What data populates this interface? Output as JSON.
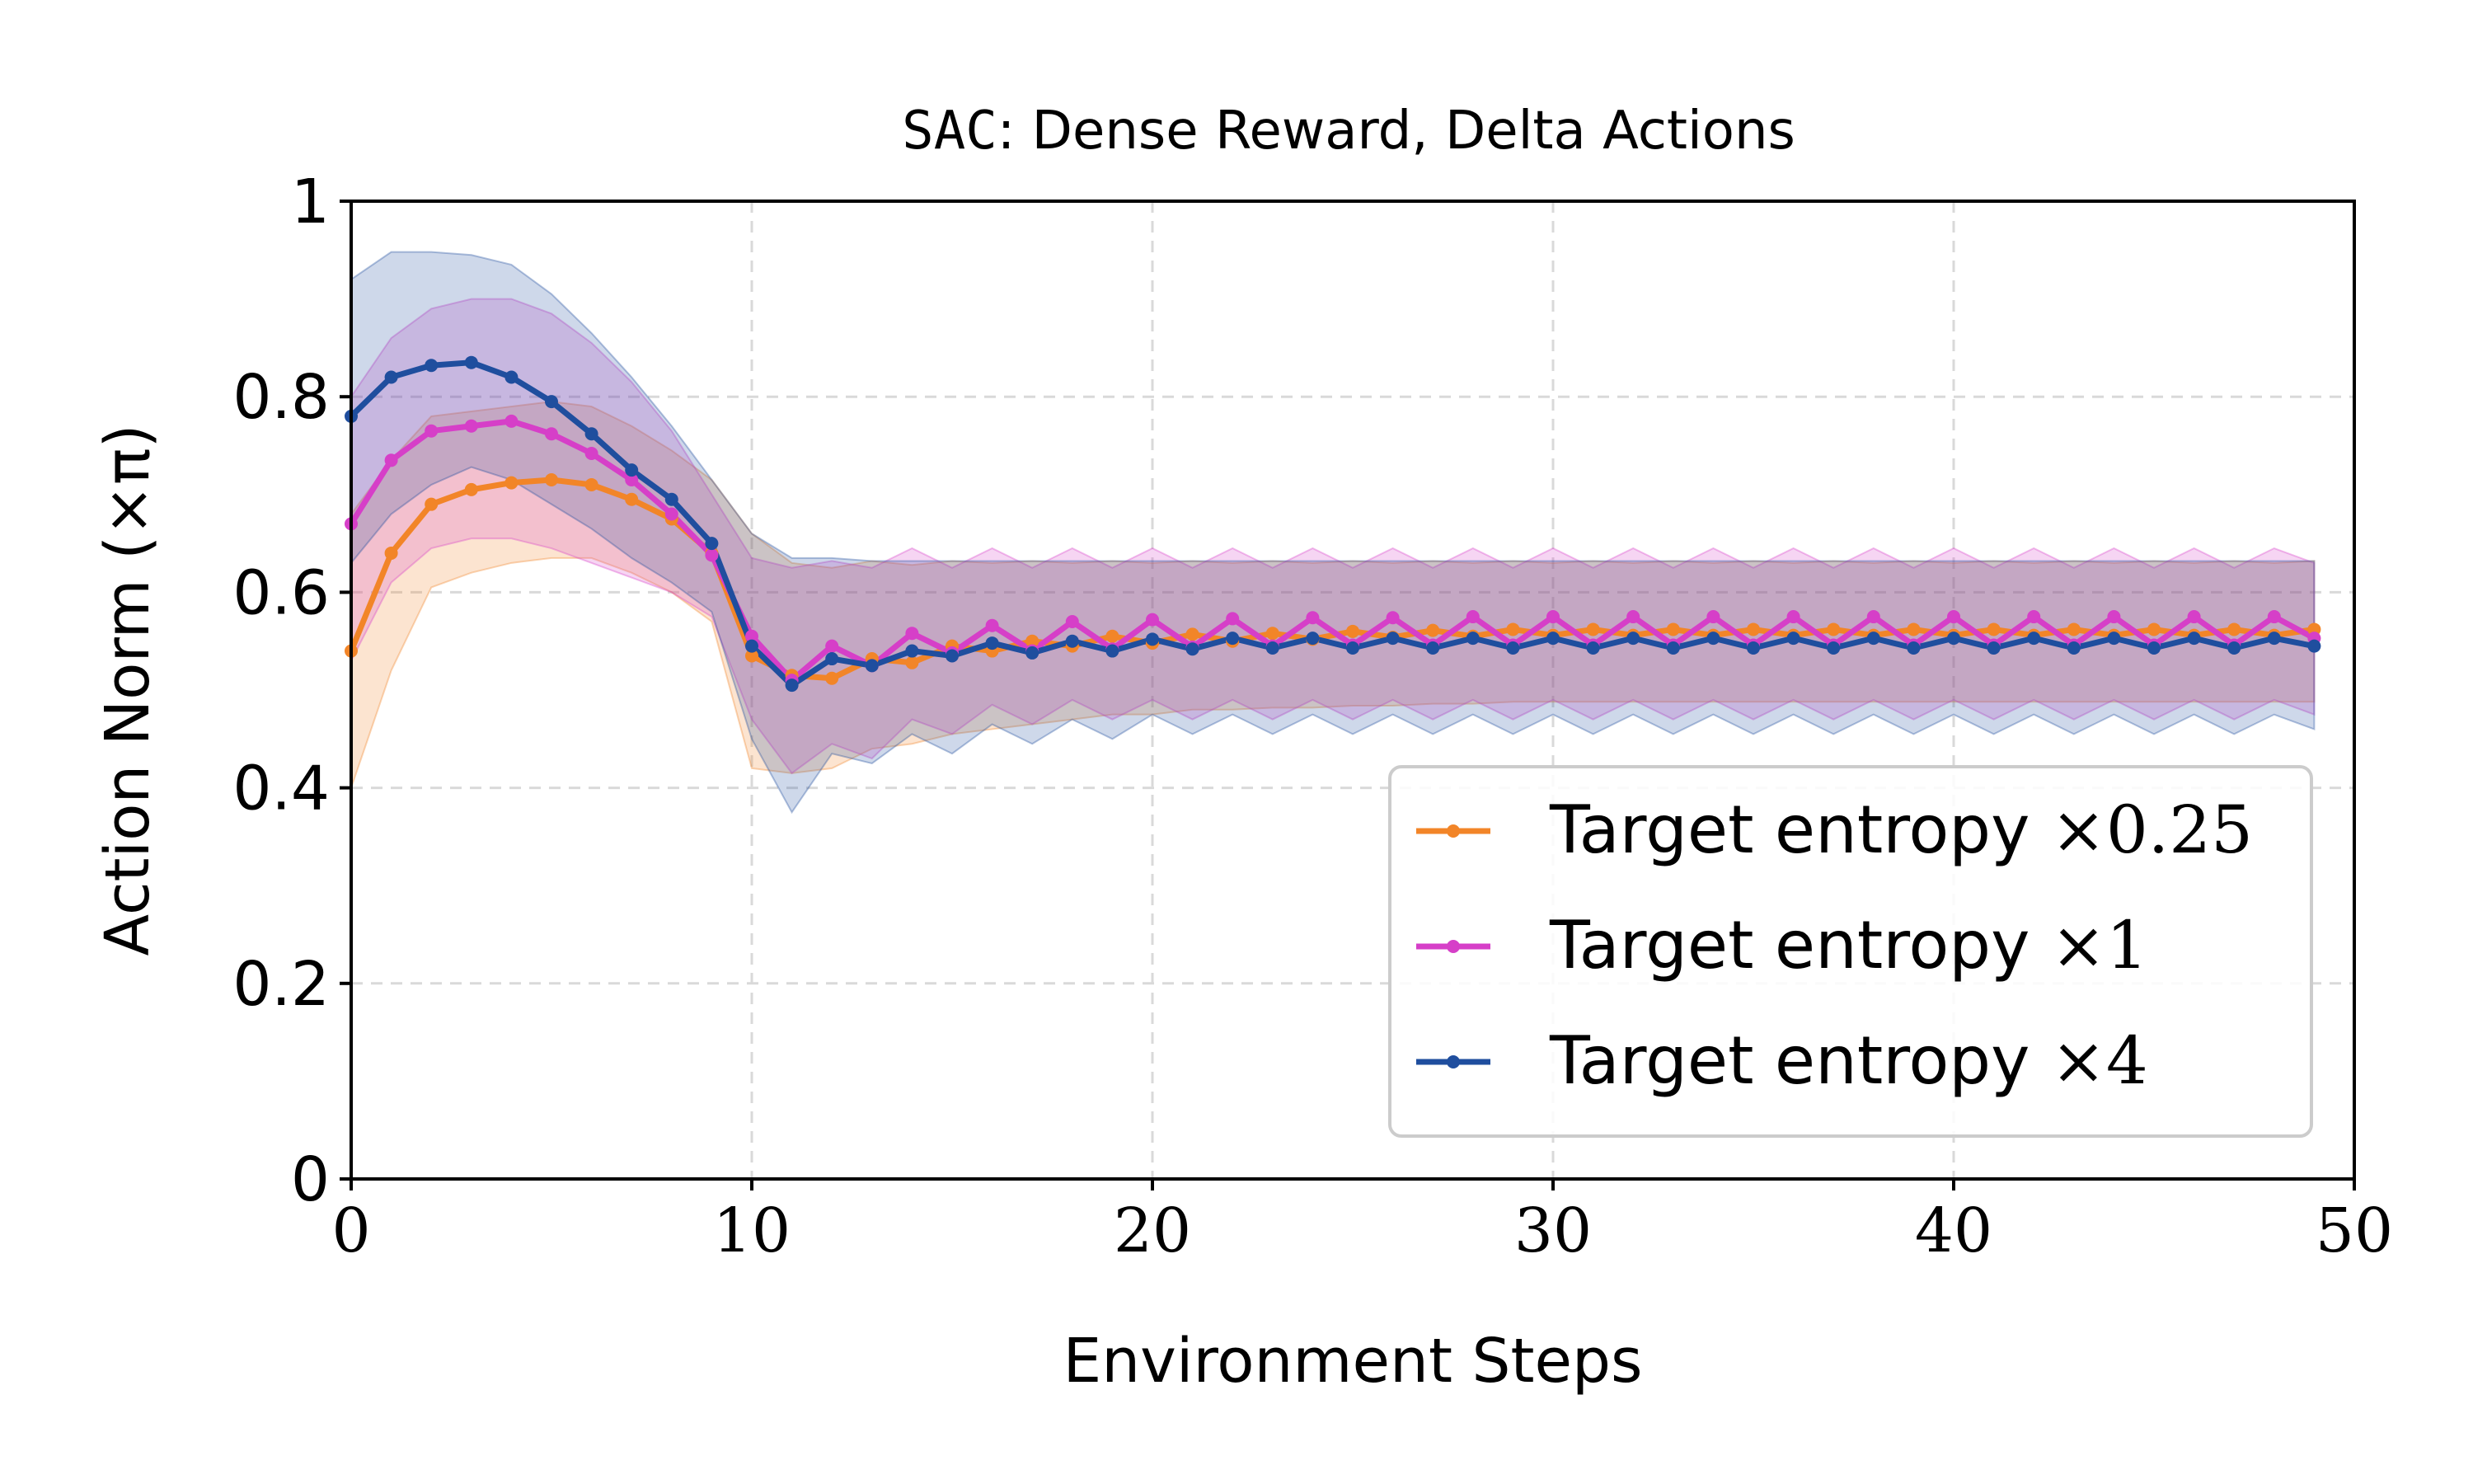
{
  "chart_data": {
    "type": "line",
    "title_code": "SAC",
    "title_rest": ": Dense Reward, Delta Actions",
    "xlabel": "Environment Steps",
    "ylabel": "Action Norm (×π)",
    "xlim": [
      0,
      50
    ],
    "ylim": [
      0,
      1
    ],
    "xticks": [
      0,
      10,
      20,
      30,
      40,
      50
    ],
    "xtick_labels": [
      "0",
      "10",
      "20",
      "30",
      "40",
      "50"
    ],
    "yticks": [
      0,
      0.2,
      0.4,
      0.6,
      0.8,
      1
    ],
    "ytick_labels": [
      "0",
      "0.2",
      "0.4",
      "0.6",
      "0.8",
      "1"
    ],
    "grid": true,
    "legend_position": "bottom-right",
    "series": [
      {
        "name": "Target entropy ×0.25",
        "legend_text": "Target entropy ",
        "legend_math": "×0.25",
        "color": "#f28528",
        "x": [
          0,
          1,
          2,
          3,
          4,
          5,
          6,
          7,
          8,
          9,
          10,
          11,
          12,
          13,
          14,
          15,
          16,
          17,
          18,
          19,
          20,
          21,
          22,
          23,
          24,
          25,
          26,
          27,
          28,
          29,
          30,
          31,
          32,
          33,
          34,
          35,
          36,
          37,
          38,
          39,
          40,
          41,
          42,
          43,
          44,
          45,
          46,
          47,
          48,
          49
        ],
        "mean": [
          0.54,
          0.64,
          0.69,
          0.705,
          0.712,
          0.715,
          0.71,
          0.695,
          0.675,
          0.64,
          0.535,
          0.515,
          0.512,
          0.532,
          0.528,
          0.545,
          0.54,
          0.55,
          0.545,
          0.555,
          0.548,
          0.557,
          0.55,
          0.558,
          0.552,
          0.56,
          0.554,
          0.561,
          0.555,
          0.562,
          0.556,
          0.562,
          0.556,
          0.562,
          0.556,
          0.562,
          0.556,
          0.562,
          0.556,
          0.562,
          0.556,
          0.562,
          0.556,
          0.562,
          0.556,
          0.562,
          0.556,
          0.562,
          0.556,
          0.562
        ],
        "upper": [
          0.68,
          0.735,
          0.78,
          0.785,
          0.79,
          0.795,
          0.79,
          0.77,
          0.745,
          0.715,
          0.66,
          0.63,
          0.625,
          0.632,
          0.628,
          0.632,
          0.63,
          0.632,
          0.63,
          0.632,
          0.63,
          0.632,
          0.63,
          0.632,
          0.63,
          0.632,
          0.63,
          0.632,
          0.63,
          0.632,
          0.63,
          0.632,
          0.63,
          0.632,
          0.63,
          0.632,
          0.63,
          0.632,
          0.63,
          0.632,
          0.63,
          0.632,
          0.63,
          0.632,
          0.63,
          0.632,
          0.63,
          0.632,
          0.63,
          0.632
        ],
        "lower": [
          0.4,
          0.52,
          0.605,
          0.62,
          0.63,
          0.635,
          0.635,
          0.62,
          0.6,
          0.57,
          0.42,
          0.415,
          0.42,
          0.44,
          0.445,
          0.455,
          0.46,
          0.465,
          0.47,
          0.475,
          0.475,
          0.48,
          0.48,
          0.482,
          0.482,
          0.484,
          0.484,
          0.486,
          0.486,
          0.488,
          0.488,
          0.488,
          0.488,
          0.488,
          0.488,
          0.488,
          0.488,
          0.488,
          0.488,
          0.488,
          0.488,
          0.488,
          0.488,
          0.488,
          0.488,
          0.488,
          0.488,
          0.488,
          0.488,
          0.488
        ]
      },
      {
        "name": "Target entropy ×1",
        "legend_text": "Target entropy ",
        "legend_math": "×1",
        "color": "#d63fc8",
        "x": [
          0,
          1,
          2,
          3,
          4,
          5,
          6,
          7,
          8,
          9,
          10,
          11,
          12,
          13,
          14,
          15,
          16,
          17,
          18,
          19,
          20,
          21,
          22,
          23,
          24,
          25,
          26,
          27,
          28,
          29,
          30,
          31,
          32,
          33,
          34,
          35,
          36,
          37,
          38,
          39,
          40,
          41,
          42,
          43,
          44,
          45,
          46,
          47,
          48,
          49
        ],
        "mean": [
          0.67,
          0.735,
          0.765,
          0.77,
          0.775,
          0.762,
          0.742,
          0.715,
          0.68,
          0.638,
          0.555,
          0.51,
          0.545,
          0.525,
          0.558,
          0.538,
          0.566,
          0.54,
          0.57,
          0.542,
          0.572,
          0.544,
          0.573,
          0.545,
          0.574,
          0.546,
          0.574,
          0.546,
          0.575,
          0.546,
          0.575,
          0.546,
          0.575,
          0.546,
          0.575,
          0.546,
          0.575,
          0.546,
          0.575,
          0.546,
          0.575,
          0.546,
          0.575,
          0.546,
          0.575,
          0.546,
          0.575,
          0.546,
          0.575,
          0.553
        ],
        "upper": [
          0.8,
          0.86,
          0.89,
          0.9,
          0.9,
          0.885,
          0.855,
          0.815,
          0.765,
          0.7,
          0.635,
          0.625,
          0.632,
          0.625,
          0.645,
          0.625,
          0.645,
          0.625,
          0.645,
          0.625,
          0.645,
          0.625,
          0.645,
          0.625,
          0.645,
          0.625,
          0.645,
          0.625,
          0.645,
          0.625,
          0.645,
          0.625,
          0.645,
          0.625,
          0.645,
          0.625,
          0.645,
          0.625,
          0.645,
          0.625,
          0.645,
          0.625,
          0.645,
          0.625,
          0.645,
          0.625,
          0.645,
          0.625,
          0.645,
          0.63
        ],
        "lower": [
          0.53,
          0.61,
          0.645,
          0.655,
          0.655,
          0.645,
          0.63,
          0.615,
          0.6,
          0.575,
          0.47,
          0.415,
          0.445,
          0.43,
          0.47,
          0.455,
          0.485,
          0.465,
          0.49,
          0.47,
          0.49,
          0.47,
          0.49,
          0.47,
          0.49,
          0.47,
          0.49,
          0.47,
          0.49,
          0.47,
          0.49,
          0.47,
          0.49,
          0.47,
          0.49,
          0.47,
          0.49,
          0.47,
          0.49,
          0.47,
          0.49,
          0.47,
          0.49,
          0.47,
          0.49,
          0.47,
          0.49,
          0.47,
          0.49,
          0.475
        ]
      },
      {
        "name": "Target entropy ×4",
        "legend_text": "Target entropy ",
        "legend_math": "×4",
        "color": "#1f4e9e",
        "x": [
          0,
          1,
          2,
          3,
          4,
          5,
          6,
          7,
          8,
          9,
          10,
          11,
          12,
          13,
          14,
          15,
          16,
          17,
          18,
          19,
          20,
          21,
          22,
          23,
          24,
          25,
          26,
          27,
          28,
          29,
          30,
          31,
          32,
          33,
          34,
          35,
          36,
          37,
          38,
          39,
          40,
          41,
          42,
          43,
          44,
          45,
          46,
          47,
          48,
          49
        ],
        "mean": [
          0.78,
          0.82,
          0.832,
          0.835,
          0.82,
          0.795,
          0.762,
          0.725,
          0.695,
          0.65,
          0.545,
          0.505,
          0.532,
          0.525,
          0.54,
          0.535,
          0.548,
          0.538,
          0.55,
          0.54,
          0.552,
          0.542,
          0.553,
          0.543,
          0.553,
          0.543,
          0.553,
          0.543,
          0.553,
          0.543,
          0.553,
          0.543,
          0.553,
          0.543,
          0.553,
          0.543,
          0.553,
          0.543,
          0.553,
          0.543,
          0.553,
          0.543,
          0.553,
          0.543,
          0.553,
          0.543,
          0.553,
          0.543,
          0.553,
          0.545
        ],
        "upper": [
          0.92,
          0.948,
          0.948,
          0.945,
          0.935,
          0.905,
          0.865,
          0.82,
          0.77,
          0.715,
          0.66,
          0.635,
          0.635,
          0.632,
          0.632,
          0.632,
          0.632,
          0.632,
          0.632,
          0.632,
          0.632,
          0.632,
          0.632,
          0.632,
          0.632,
          0.632,
          0.632,
          0.632,
          0.632,
          0.632,
          0.632,
          0.632,
          0.632,
          0.632,
          0.632,
          0.632,
          0.632,
          0.632,
          0.632,
          0.632,
          0.632,
          0.632,
          0.632,
          0.632,
          0.632,
          0.632,
          0.632,
          0.632,
          0.632,
          0.632
        ],
        "lower": [
          0.63,
          0.68,
          0.71,
          0.728,
          0.715,
          0.69,
          0.665,
          0.635,
          0.61,
          0.58,
          0.45,
          0.375,
          0.435,
          0.425,
          0.455,
          0.435,
          0.465,
          0.445,
          0.47,
          0.45,
          0.475,
          0.455,
          0.475,
          0.455,
          0.475,
          0.455,
          0.475,
          0.455,
          0.475,
          0.455,
          0.475,
          0.455,
          0.475,
          0.455,
          0.475,
          0.455,
          0.475,
          0.455,
          0.475,
          0.455,
          0.475,
          0.455,
          0.475,
          0.455,
          0.475,
          0.455,
          0.475,
          0.455,
          0.475,
          0.46
        ]
      }
    ]
  }
}
